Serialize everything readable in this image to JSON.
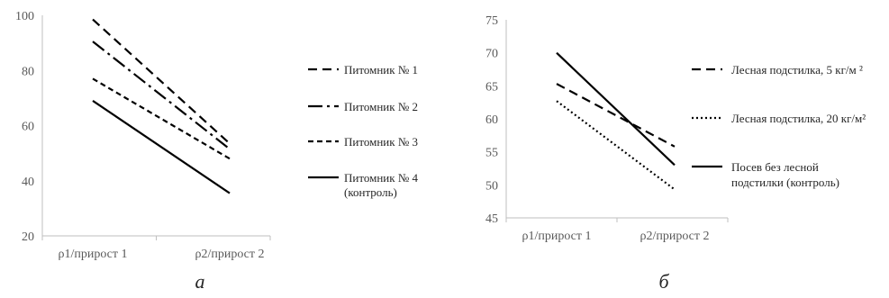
{
  "chart_data": [
    {
      "type": "line",
      "panel_label": "а",
      "categories": [
        "ρ1/прирост 1",
        "ρ2/прирост 2"
      ],
      "ylim": [
        20,
        100
      ],
      "yticks": [
        20,
        40,
        60,
        80,
        100
      ],
      "grid": false,
      "legend_position": "right",
      "series": [
        {
          "name": "Питомник № 1",
          "values": [
            98.5,
            53.5
          ],
          "dash": "10,6",
          "color": "#000000"
        },
        {
          "name": "Питомник № 2",
          "values": [
            90.5,
            51.5
          ],
          "dash": "16,5,3,5",
          "color": "#000000"
        },
        {
          "name": "Питомник № 3",
          "values": [
            77.0,
            48.0
          ],
          "dash": "6,4",
          "color": "#000000"
        },
        {
          "name": "Питомник № 4\n(контроль)",
          "values": [
            69.0,
            35.5
          ],
          "dash": "",
          "color": "#000000"
        }
      ]
    },
    {
      "type": "line",
      "panel_label": "б",
      "categories": [
        "ρ1/прирост 1",
        "ρ2/прирост 2"
      ],
      "ylim": [
        45,
        75
      ],
      "yticks": [
        45,
        50,
        55,
        60,
        65,
        70,
        75
      ],
      "grid": false,
      "legend_position": "right",
      "series": [
        {
          "name": "Лесная подстилка, 5 кг/м ²",
          "values": [
            65.3,
            55.8
          ],
          "dash": "10,6",
          "color": "#000000"
        },
        {
          "name": "Лесная подстилка, 20 кг/м²",
          "values": [
            62.7,
            49.3
          ],
          "dash": "2,3",
          "color": "#000000"
        },
        {
          "name": "Посев без лесной\nподстилки (контроль)",
          "values": [
            70.0,
            53.0
          ],
          "dash": "",
          "color": "#000000"
        }
      ]
    }
  ]
}
